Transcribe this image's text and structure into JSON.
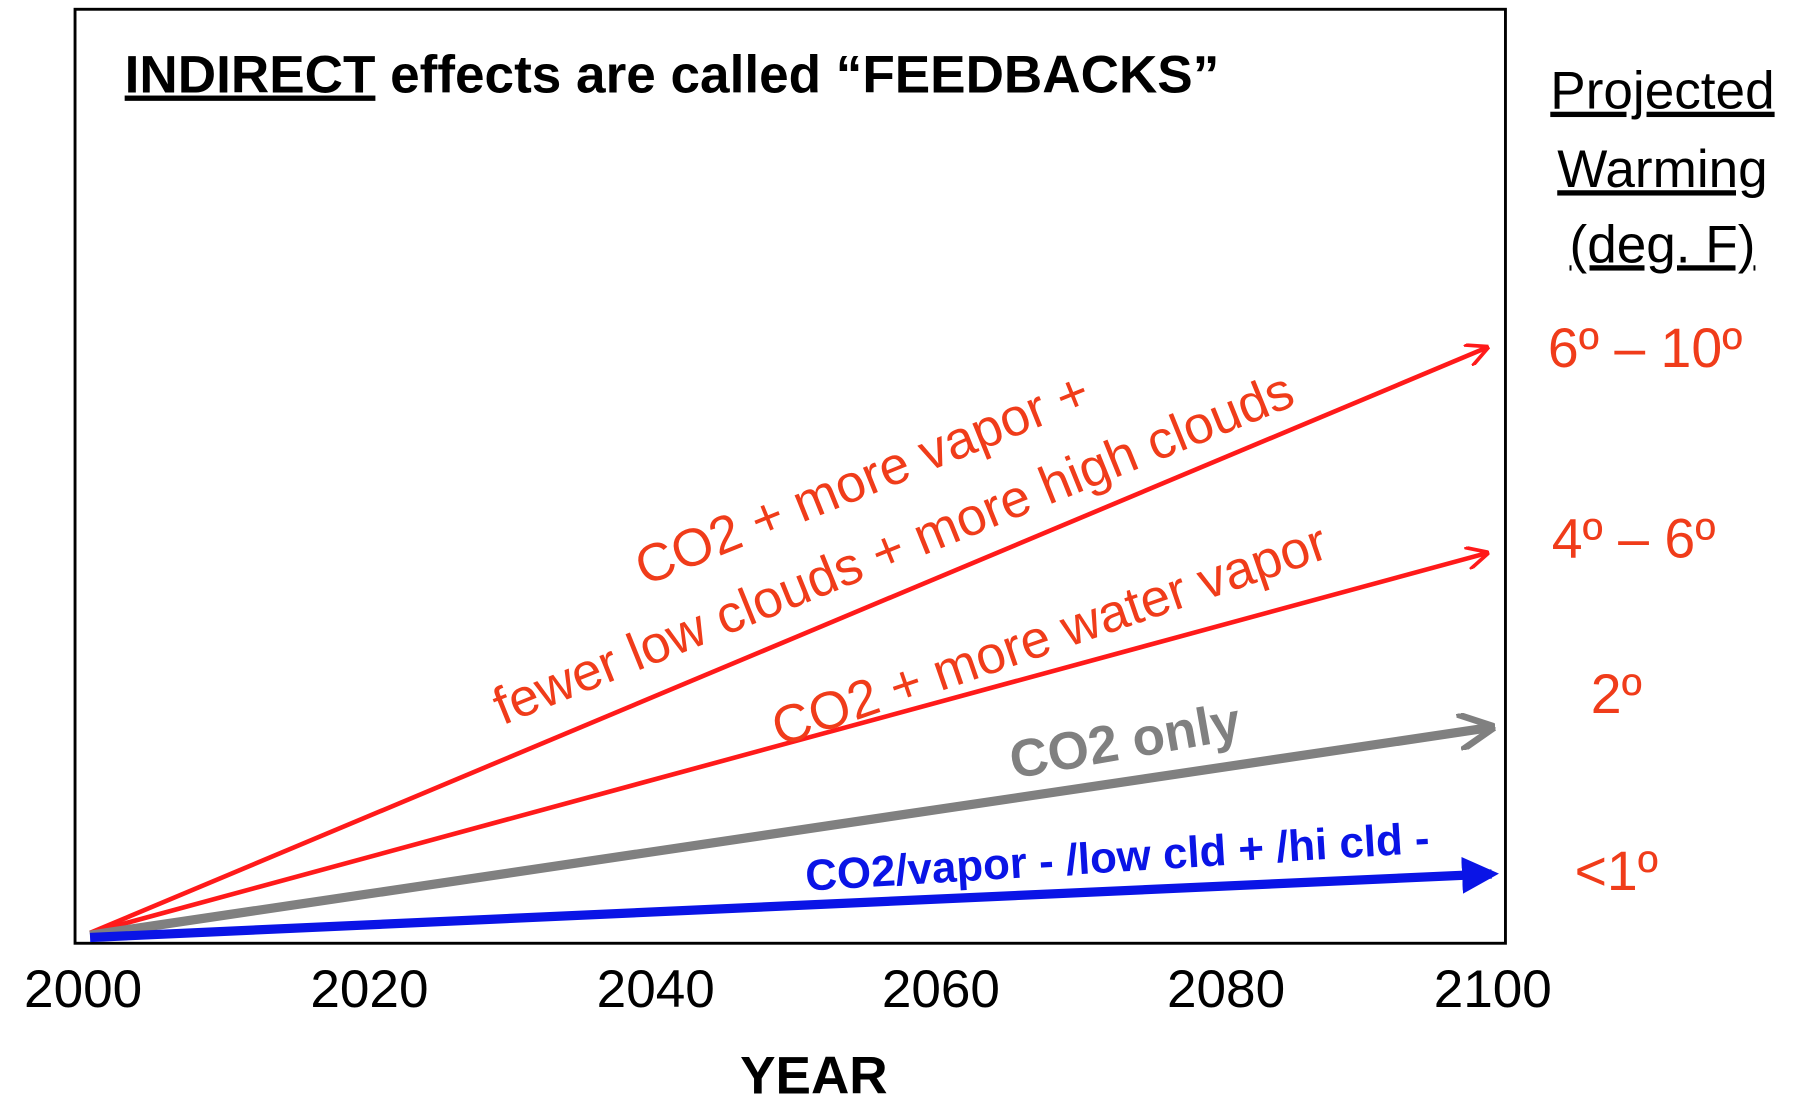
{
  "title": {
    "underlined": "INDIRECT",
    "rest": " effects are called “FEEDBACKS”"
  },
  "side_header": [
    "Projected",
    "Warming",
    "(deg. F)"
  ],
  "x_axis": {
    "label": "YEAR",
    "ticks": [
      "2000",
      "2020",
      "2040",
      "2060",
      "2080",
      "2100"
    ]
  },
  "arrows": [
    {
      "label_lines": [
        "CO2 + more vapor +",
        "fewer low clouds + more high clouds"
      ],
      "warming": "6º – 10º"
    },
    {
      "label_lines": [
        "CO2 + more water vapor"
      ],
      "warming": "4º – 6º"
    },
    {
      "label_lines": [
        "CO2 only"
      ],
      "warming": "2º"
    },
    {
      "label_lines": [
        "CO2/vapor - /low cld + /hi cld -"
      ],
      "warming": "<1º"
    }
  ]
}
